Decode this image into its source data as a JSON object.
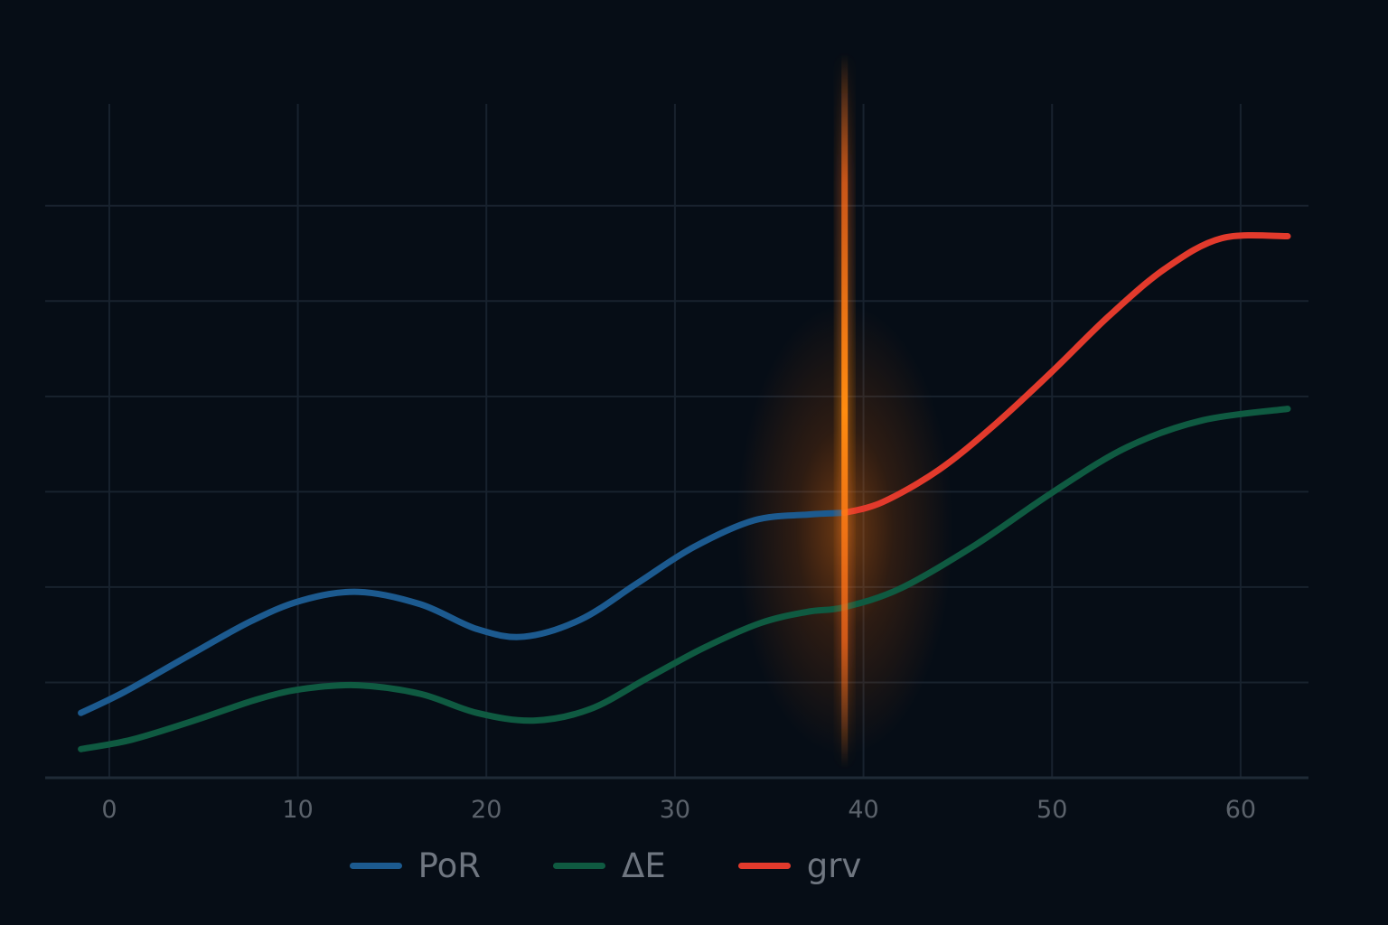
{
  "chart_data": {
    "type": "line",
    "title": "",
    "xlabel": "",
    "ylabel": "",
    "xlim": [
      -3.4,
      63.6
    ],
    "ylim": [
      0,
      6.5
    ],
    "x_ticks": [
      0,
      10,
      20,
      30,
      40,
      50,
      60
    ],
    "grid": true,
    "legend_position": "bottom-center",
    "highlight": {
      "x": 39,
      "color": "#ff8a1a"
    },
    "series": [
      {
        "name": "PoR",
        "color": "#1c5a8f",
        "x": [
          -1.5,
          0.8,
          4.2,
          7.5,
          10.2,
          13.2,
          16.5,
          19.5,
          22,
          25,
          28,
          31,
          34.2,
          37,
          39
        ],
        "y": [
          0.68,
          0.9,
          1.28,
          1.64,
          1.86,
          1.95,
          1.82,
          1.56,
          1.48,
          1.66,
          2.04,
          2.42,
          2.7,
          2.76,
          2.78
        ]
      },
      {
        "name": "ΔE",
        "color": "#0f5a41",
        "x": [
          -1.5,
          1.2,
          4.5,
          7.8,
          10.2,
          13.2,
          16.5,
          19.5,
          22.5,
          25.5,
          28.5,
          31.5,
          34.5,
          37,
          39,
          42,
          46,
          50,
          54,
          58,
          62.5
        ],
        "y": [
          0.3,
          0.4,
          0.6,
          0.82,
          0.93,
          0.97,
          0.88,
          0.68,
          0.6,
          0.72,
          1.04,
          1.36,
          1.62,
          1.74,
          1.79,
          1.99,
          2.45,
          2.99,
          3.47,
          3.75,
          3.87
        ]
      },
      {
        "name": "grv",
        "color": "#e23a2c",
        "x": [
          39,
          41,
          44,
          47,
          50,
          53,
          56,
          59,
          62.5
        ],
        "y": [
          2.78,
          2.89,
          3.23,
          3.71,
          4.26,
          4.84,
          5.34,
          5.66,
          5.68
        ]
      }
    ]
  }
}
